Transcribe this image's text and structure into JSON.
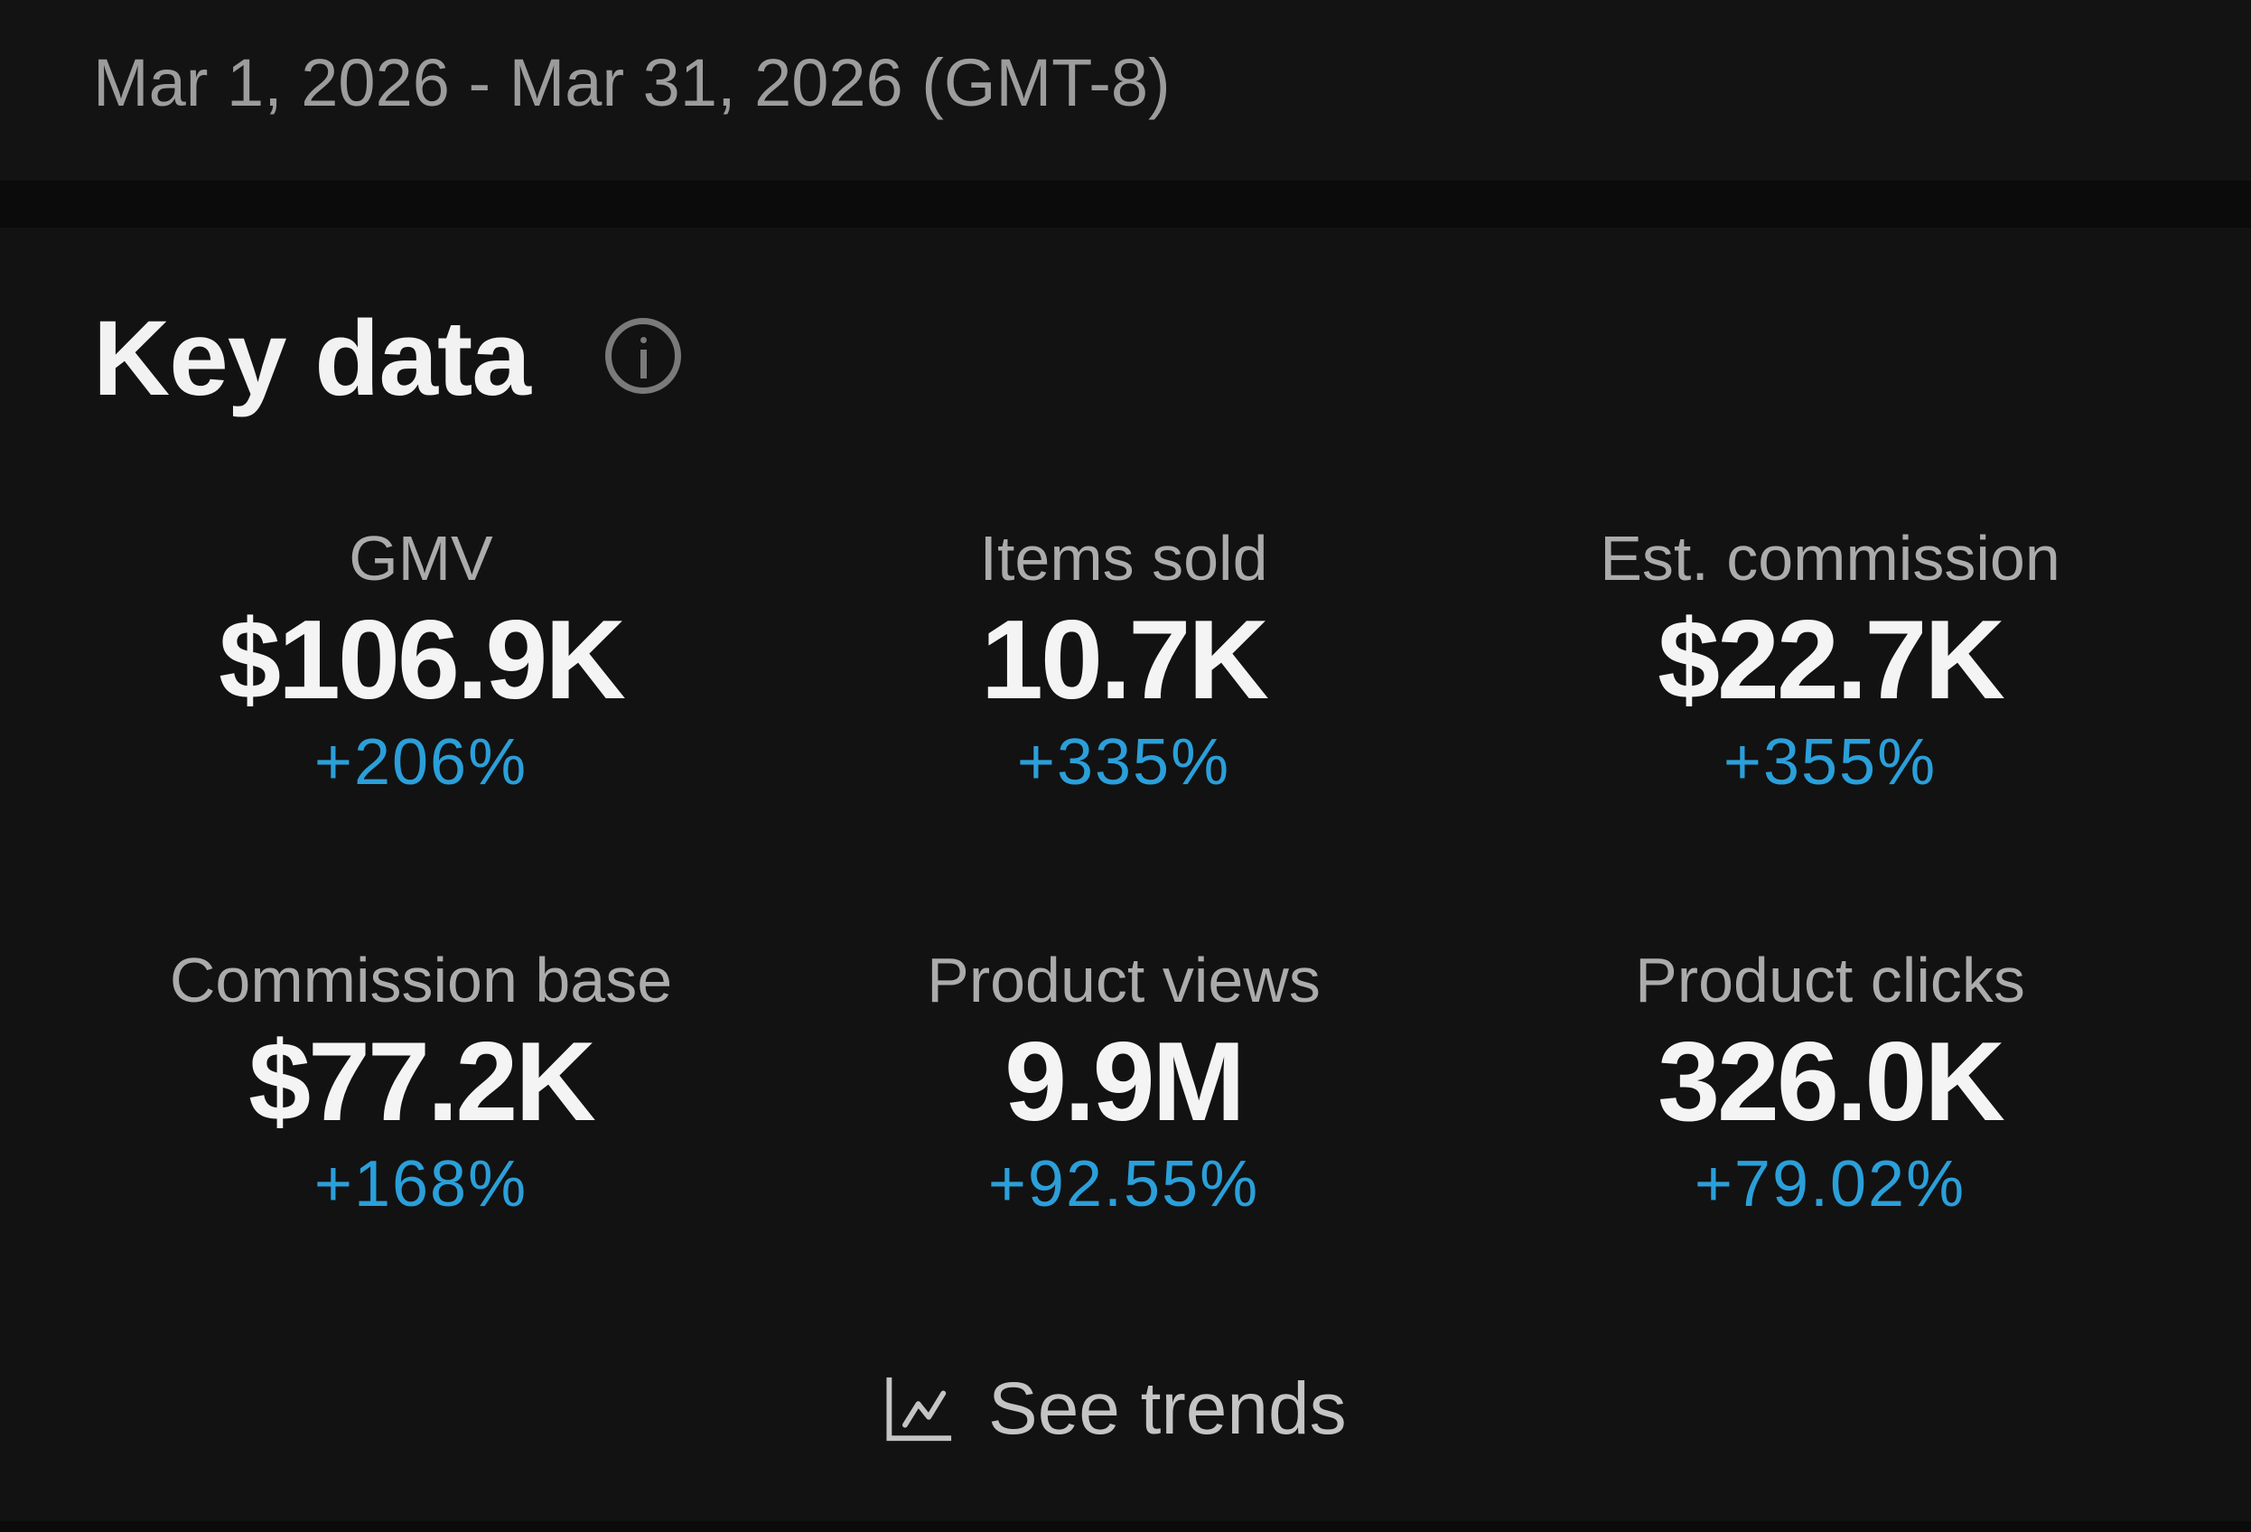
{
  "header": {
    "date_range": "Mar 1, 2026 - Mar 31, 2026 (GMT-8)"
  },
  "key_data": {
    "title": "Key data",
    "info_icon": "info-circle-icon",
    "metrics": [
      {
        "label": "GMV",
        "value": "$106.9K",
        "change": "+206%"
      },
      {
        "label": "Items sold",
        "value": "10.7K",
        "change": "+335%"
      },
      {
        "label": "Est. commission",
        "value": "$22.7K",
        "change": "+355%"
      },
      {
        "label": "Commission base",
        "value": "$77.2K",
        "change": "+168%"
      },
      {
        "label": "Product views",
        "value": "9.9M",
        "change": "+92.55%"
      },
      {
        "label": "Product clicks",
        "value": "326.0K",
        "change": "+79.02%"
      }
    ],
    "see_trends": {
      "label": "See trends",
      "icon": "line-chart-icon"
    }
  },
  "colors": {
    "background": "#121212",
    "positive_change": "#2b9fd9",
    "label": "#ababab",
    "value": "#f4f4f4"
  }
}
